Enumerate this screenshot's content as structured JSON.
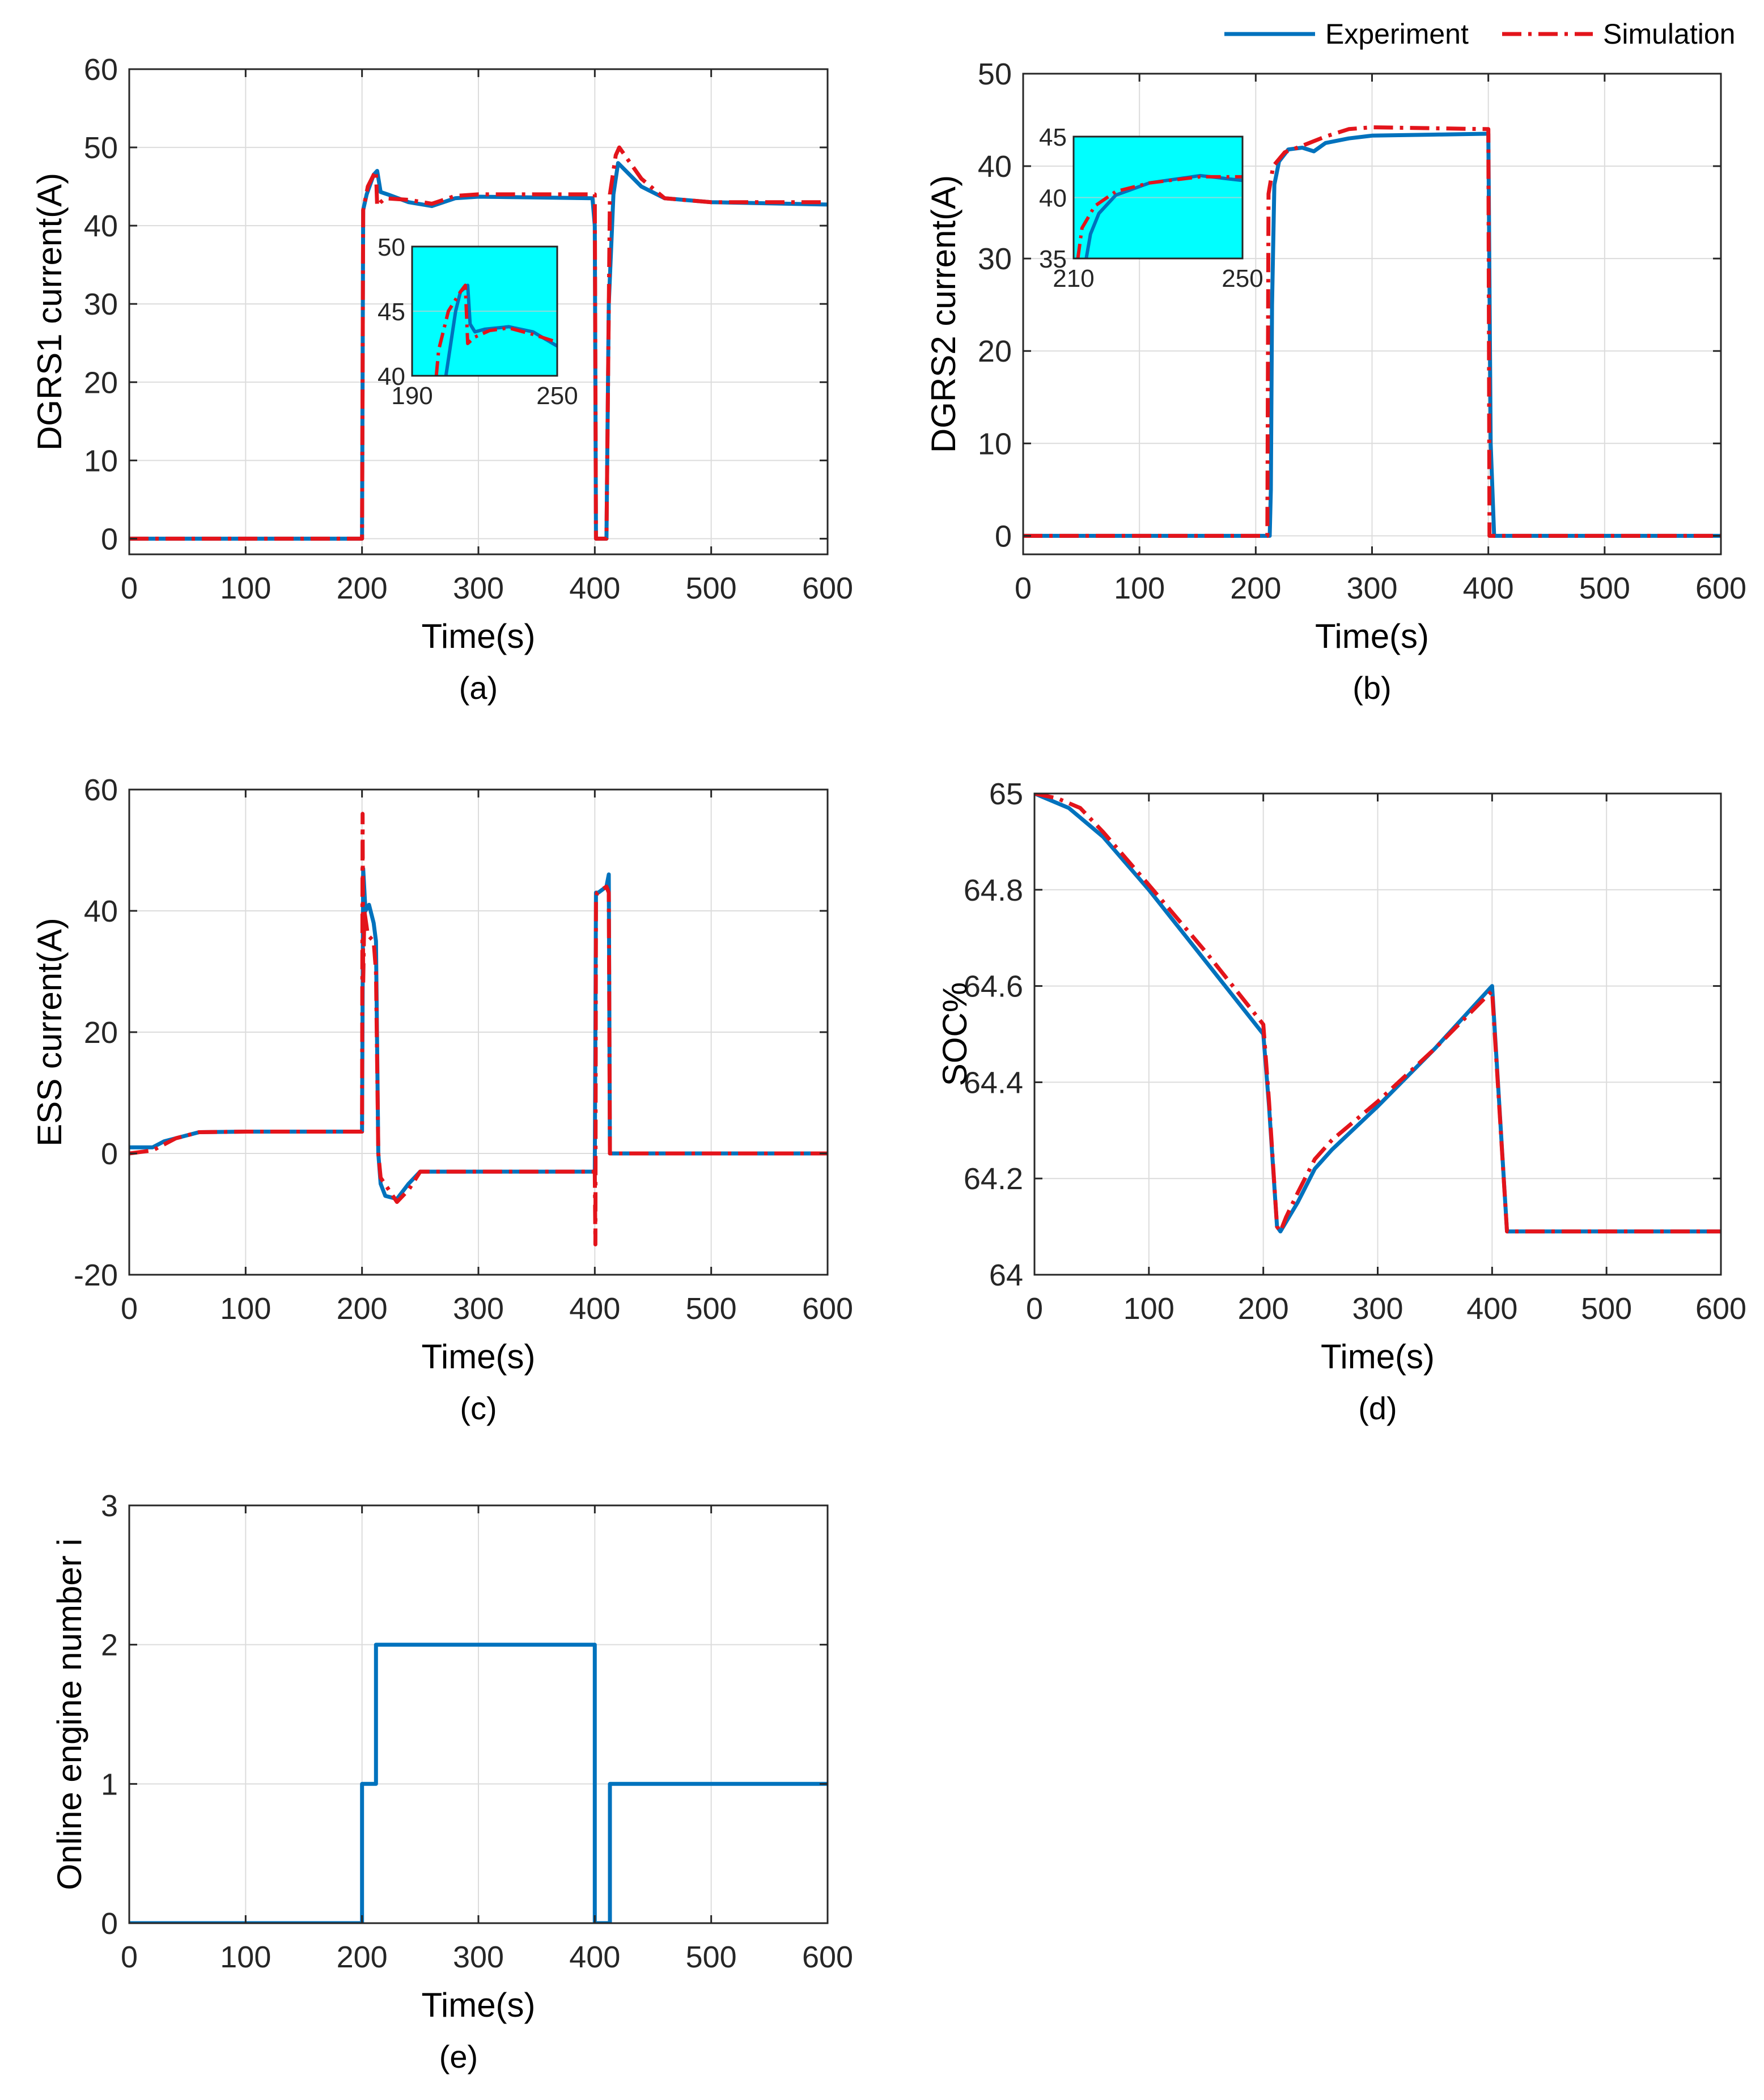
{
  "legend": {
    "experiment": "Experiment",
    "simulation": "Simulation"
  },
  "colors": {
    "experiment": "#0072BD",
    "simulation": "#E3141B",
    "inset_bg": "#00FFFF",
    "grid": "#DCDCDC",
    "axis": "#262626"
  },
  "chart_data": [
    {
      "id": "a",
      "type": "line",
      "caption": "(a)",
      "xlabel": "Time(s)",
      "ylabel": "DGRS1 current(A)",
      "xlim": [
        0,
        600
      ],
      "ylim": [
        -2,
        60
      ],
      "xticks": [
        0,
        100,
        200,
        300,
        400,
        500,
        600
      ],
      "yticks": [
        0,
        10,
        20,
        30,
        40,
        50,
        60
      ],
      "grid": true,
      "series": [
        {
          "name": "Experiment",
          "style": "solid",
          "x": [
            0,
            198,
            200,
            201,
            204,
            210,
            213,
            216,
            222,
            240,
            260,
            280,
            300,
            350,
            398,
            400,
            401,
            404,
            410,
            412,
            416,
            420,
            440,
            460,
            500,
            600
          ],
          "y": [
            0,
            0,
            0,
            42,
            44,
            46.5,
            47,
            44.3,
            44,
            43,
            42.5,
            43.5,
            43.7,
            43.6,
            43.5,
            40,
            0,
            0,
            0,
            30,
            44,
            48,
            45,
            43.5,
            43,
            42.7
          ]
        },
        {
          "name": "Simulation",
          "style": "dashdot",
          "x": [
            0,
            200,
            201,
            205,
            210,
            212,
            213,
            216,
            220,
            240,
            260,
            280,
            300,
            398,
            400,
            401,
            410,
            413,
            418,
            421,
            440,
            460,
            500,
            600
          ],
          "y": [
            0,
            0,
            42,
            45,
            46.5,
            47,
            42.5,
            43,
            43.5,
            43.3,
            42.8,
            43.8,
            44,
            44,
            44,
            0,
            0,
            44,
            49,
            50,
            46,
            43.5,
            43,
            43
          ]
        }
      ],
      "inset": {
        "xlim": [
          190,
          250
        ],
        "ylim": [
          40,
          50
        ],
        "xticks": [
          190,
          250
        ],
        "yticks": [
          40,
          45,
          50
        ],
        "series": [
          {
            "name": "Experiment",
            "x": [
              204,
              208,
              210,
              213,
              214,
              216,
              220,
              230,
              240,
              250
            ],
            "y": [
              40,
              45,
              46.5,
              47,
              44,
              43.4,
              43.6,
              43.8,
              43.4,
              42.3
            ]
          },
          {
            "name": "Simulation",
            "x": [
              200,
              201,
              205,
              210,
              212,
              213,
              216,
              222,
              230,
              240,
              250
            ],
            "y": [
              40,
              42,
              45,
              46.5,
              47,
              42.5,
              43,
              43.5,
              43.7,
              43.2,
              42.6
            ]
          }
        ]
      }
    },
    {
      "id": "b",
      "type": "line",
      "caption": "(b)",
      "xlabel": "Time(s)",
      "ylabel": "DGRS2 current(A)",
      "xlim": [
        0,
        600
      ],
      "ylim": [
        -2,
        50
      ],
      "xticks": [
        0,
        100,
        200,
        300,
        400,
        500,
        600
      ],
      "yticks": [
        0,
        10,
        20,
        30,
        40,
        50
      ],
      "grid": true,
      "series": [
        {
          "name": "Experiment",
          "style": "solid",
          "x": [
            0,
            210,
            212,
            213,
            214,
            216,
            220,
            228,
            240,
            250,
            260,
            280,
            300,
            350,
            398,
            400,
            402,
            405,
            600
          ],
          "y": [
            0,
            0,
            0,
            5,
            25,
            38,
            40.5,
            41.8,
            42,
            41.6,
            42.5,
            43,
            43.3,
            43.4,
            43.5,
            43.5,
            10,
            0,
            0
          ]
        },
        {
          "name": "Simulation",
          "style": "dashdot",
          "x": [
            0,
            210,
            211,
            215,
            225,
            240,
            260,
            280,
            300,
            350,
            399,
            400,
            401,
            600
          ],
          "y": [
            0,
            0,
            37,
            40,
            41.5,
            42.2,
            43.2,
            44,
            44.2,
            44.1,
            44,
            44,
            0,
            0
          ]
        }
      ],
      "inset": {
        "xlim": [
          210,
          250
        ],
        "ylim": [
          35,
          45
        ],
        "xticks": [
          210,
          250
        ],
        "yticks": [
          35,
          40,
          45
        ],
        "series": [
          {
            "name": "Experiment",
            "x": [
              213,
              214,
              216,
              220,
              228,
              240,
              250
            ],
            "y": [
              35,
              37,
              38.7,
              40.2,
              41.2,
              41.8,
              41.4
            ]
          },
          {
            "name": "Simulation",
            "x": [
              211,
              212,
              215,
              220,
              228,
              240,
              250
            ],
            "y": [
              35,
              37.5,
              39.3,
              40.5,
              41.2,
              41.7,
              41.7
            ]
          }
        ]
      }
    },
    {
      "id": "c",
      "type": "line",
      "caption": "(c)",
      "xlabel": "Time(s)",
      "ylabel": "ESS current(A)",
      "xlim": [
        0,
        600
      ],
      "ylim": [
        -20,
        60
      ],
      "xticks": [
        0,
        100,
        200,
        300,
        400,
        500,
        600
      ],
      "yticks": [
        -20,
        0,
        20,
        40,
        60
      ],
      "grid": true,
      "series": [
        {
          "name": "Experiment",
          "style": "solid",
          "x": [
            0,
            20,
            30,
            60,
            100,
            150,
            198,
            200,
            201,
            203,
            206,
            210,
            212,
            214,
            216,
            220,
            230,
            240,
            250,
            260,
            300,
            350,
            398,
            400,
            401,
            403,
            410,
            412,
            413,
            414,
            600
          ],
          "y": [
            1,
            1,
            2,
            3.5,
            3.6,
            3.6,
            3.6,
            3.6,
            47,
            40,
            41,
            38,
            35,
            0,
            -5,
            -7,
            -7.5,
            -5,
            -3,
            -3,
            -3,
            -3,
            -3,
            -3,
            43,
            43,
            44,
            46,
            0,
            0,
            0
          ]
        },
        {
          "name": "Simulation",
          "style": "dashdot",
          "x": [
            0,
            20,
            40,
            60,
            100,
            199,
            200,
            200.5,
            201,
            202,
            205,
            210,
            212,
            214,
            216,
            230,
            240,
            250,
            260,
            300,
            350,
            399,
            400,
            400.5,
            401,
            402,
            410,
            412,
            413,
            600
          ],
          "y": [
            0,
            0.5,
            2.5,
            3.5,
            3.6,
            3.6,
            3.6,
            56,
            28,
            40,
            36,
            35,
            30,
            0,
            -4,
            -8,
            -6,
            -3,
            -3,
            -3,
            -3,
            -3,
            -3,
            -15,
            42,
            43,
            44,
            43,
            0,
            0
          ]
        }
      ]
    },
    {
      "id": "d",
      "type": "line",
      "caption": "(d)",
      "xlabel": "Time(s)",
      "ylabel": "SOC%",
      "xlim": [
        0,
        600
      ],
      "ylim": [
        64,
        65
      ],
      "xticks": [
        0,
        100,
        200,
        300,
        400,
        500,
        600
      ],
      "yticks": [
        64,
        64.2,
        64.4,
        64.6,
        64.8,
        65
      ],
      "grid": true,
      "series": [
        {
          "name": "Experiment",
          "style": "solid",
          "x": [
            0,
            10,
            30,
            60,
            100,
            150,
            200,
            205,
            212,
            215,
            220,
            230,
            245,
            260,
            300,
            350,
            400,
            413,
            600
          ],
          "y": [
            65,
            64.99,
            64.97,
            64.91,
            64.8,
            64.65,
            64.5,
            64.35,
            64.1,
            64.09,
            64.11,
            64.15,
            64.22,
            64.26,
            64.35,
            64.47,
            64.6,
            64.09,
            64.09
          ]
        },
        {
          "name": "Simulation",
          "style": "dashdot",
          "x": [
            0,
            20,
            40,
            60,
            100,
            150,
            200,
            205,
            212,
            215,
            220,
            230,
            245,
            260,
            300,
            350,
            400,
            413,
            600
          ],
          "y": [
            65,
            64.99,
            64.97,
            64.92,
            64.81,
            64.67,
            64.52,
            64.36,
            64.1,
            64.09,
            64.12,
            64.17,
            64.24,
            64.28,
            64.36,
            64.47,
            64.59,
            64.09,
            64.09
          ]
        }
      ]
    },
    {
      "id": "e",
      "type": "line",
      "caption": "(e)",
      "xlabel": "Time(s)",
      "ylabel": "Online engine number i",
      "xlim": [
        0,
        600
      ],
      "ylim": [
        0,
        3
      ],
      "xticks": [
        0,
        100,
        200,
        300,
        400,
        500,
        600
      ],
      "yticks": [
        0,
        1,
        2,
        3
      ],
      "grid": true,
      "series": [
        {
          "name": "Experiment",
          "style": "solid",
          "x": [
            0,
            200,
            200,
            212,
            212,
            400,
            400,
            413,
            413,
            600
          ],
          "y": [
            0,
            0,
            1,
            1,
            2,
            2,
            0,
            0,
            1,
            1
          ]
        }
      ]
    }
  ]
}
